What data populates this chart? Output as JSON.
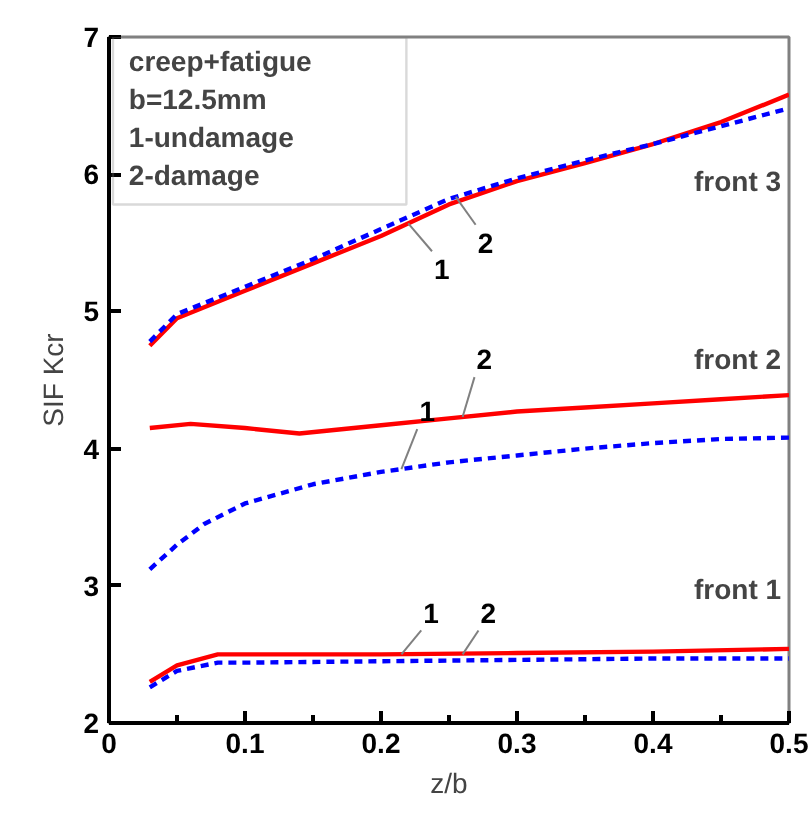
{
  "chart_data": {
    "type": "line",
    "xlabel": "z/b",
    "ylabel": "SIF Kcr",
    "xlim": [
      0,
      0.5
    ],
    "ylim": [
      2,
      7
    ],
    "xticks": [
      0,
      0.1,
      0.2,
      0.3,
      0.4,
      0.5
    ],
    "yticks": [
      2,
      3,
      4,
      5,
      6,
      7
    ],
    "grid": false,
    "series": [
      {
        "color": "#ff0000",
        "line_style": "solid",
        "x": [
          0.03,
          0.05,
          0.1,
          0.15,
          0.2,
          0.25,
          0.3,
          0.35,
          0.4,
          0.45,
          0.5
        ],
        "values": [
          4.75,
          4.95,
          5.15,
          5.35,
          5.55,
          5.78,
          5.95,
          6.08,
          6.22,
          6.38,
          6.58
        ]
      },
      {
        "color": "#0000ff",
        "line_style": "dashed",
        "x": [
          0.03,
          0.05,
          0.1,
          0.15,
          0.2,
          0.25,
          0.3,
          0.35,
          0.4,
          0.45,
          0.5
        ],
        "values": [
          4.78,
          4.98,
          5.18,
          5.38,
          5.6,
          5.82,
          5.97,
          6.1,
          6.22,
          6.35,
          6.48
        ]
      },
      {
        "color": "#ff0000",
        "line_style": "solid",
        "x": [
          0.03,
          0.06,
          0.1,
          0.14,
          0.2,
          0.25,
          0.3,
          0.35,
          0.4,
          0.45,
          0.5
        ],
        "values": [
          4.15,
          4.18,
          4.15,
          4.11,
          4.17,
          4.22,
          4.27,
          4.3,
          4.33,
          4.36,
          4.39
        ]
      },
      {
        "color": "#0000ff",
        "line_style": "dashed",
        "x": [
          0.03,
          0.05,
          0.07,
          0.1,
          0.15,
          0.2,
          0.25,
          0.3,
          0.35,
          0.4,
          0.45,
          0.5
        ],
        "values": [
          3.12,
          3.3,
          3.45,
          3.6,
          3.74,
          3.83,
          3.9,
          3.95,
          4.0,
          4.04,
          4.07,
          4.08
        ]
      },
      {
        "color": "#ff0000",
        "line_style": "solid",
        "x": [
          0.03,
          0.05,
          0.08,
          0.1,
          0.2,
          0.3,
          0.4,
          0.5
        ],
        "values": [
          2.3,
          2.42,
          2.5,
          2.5,
          2.5,
          2.51,
          2.52,
          2.54
        ]
      },
      {
        "color": "#0000ff",
        "line_style": "dashed",
        "x": [
          0.03,
          0.05,
          0.08,
          0.1,
          0.2,
          0.3,
          0.4,
          0.5
        ],
        "values": [
          2.26,
          2.38,
          2.44,
          2.44,
          2.45,
          2.46,
          2.47,
          2.47
        ]
      }
    ],
    "annotations": [
      "creep+fatigue",
      "b=12.5mm",
      "1-undamage",
      "2-damage",
      {
        "text": "1",
        "x": 0.22,
        "y": 5.642
      },
      {
        "text": "2",
        "x": 0.255,
        "y": 5.835
      },
      {
        "text": "1",
        "x": 0.215,
        "y": 3.851
      },
      {
        "text": "2",
        "x": 0.26,
        "y": 4.23
      },
      {
        "text": "1",
        "x": 0.215,
        "y": 2.5
      },
      {
        "text": "2",
        "x": 0.26,
        "y": 2.5
      },
      "front 3",
      "front 2",
      "front 1"
    ]
  }
}
